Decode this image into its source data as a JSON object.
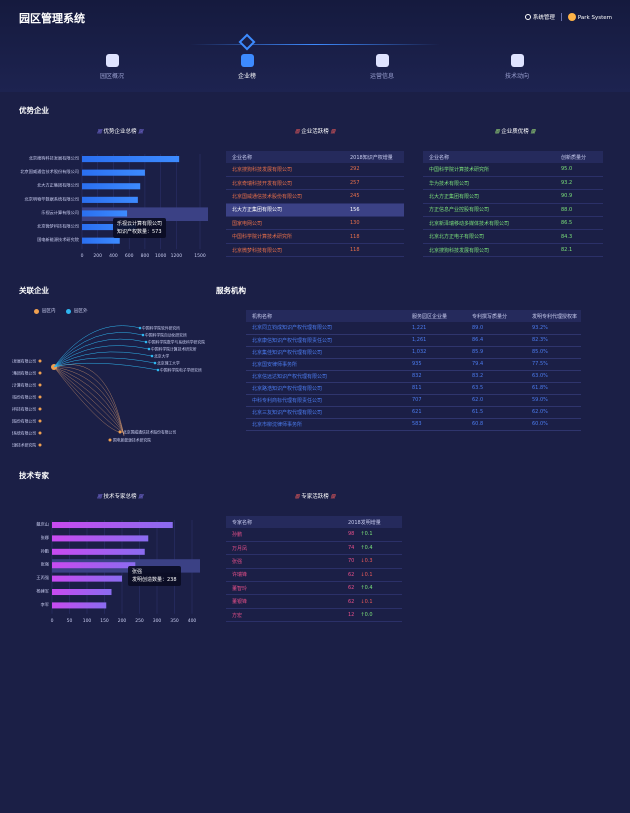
{
  "header": {
    "title": "园区管理系统",
    "settings_label": "系统管理",
    "user_label": "Park System"
  },
  "nav": [
    {
      "label": "园区概况"
    },
    {
      "label": "企业榜"
    },
    {
      "label": "运营信息"
    },
    {
      "label": "技术动向"
    }
  ],
  "sections": {
    "superior": "优势企业",
    "related": "关联企业",
    "service": "服务机构",
    "experts": "技术专家"
  },
  "superior_chart": {
    "title": "优势企业总榜",
    "chart_data": {
      "type": "bar",
      "categories": [
        "北京搜狗科技发展有限公司",
        "北京国威通信技术股份有限公司",
        "北大方正集团有限公司",
        "北京明物华数据系统有限公司",
        "乐视云计算有限公司",
        "北京微梦科技有限公司",
        "国电新能源技术研究院"
      ],
      "values": [
        1235,
        800,
        740,
        710,
        573,
        690,
        480
      ],
      "xlim": [
        0,
        1500
      ],
      "ticks": [
        0,
        200,
        400,
        600,
        800,
        1000,
        1200,
        1500
      ],
      "highlight": 4
    },
    "tooltip": {
      "name": "乐视云计算有限公司",
      "label": "知识产权数量：573"
    }
  },
  "active_table": {
    "title": "企业活跃榜",
    "headers": [
      "企业名称",
      "2018知识产权增量"
    ],
    "rows": [
      [
        "北京搜狗科技发展有限公司",
        "292"
      ],
      [
        "北京奇瑞科技开发有限公司",
        "257"
      ],
      [
        "北京国威通信技术股份有限公司",
        "245"
      ],
      [
        "北大方正集团有限公司",
        "156"
      ],
      [
        "国家电网公司",
        "130"
      ],
      [
        "中国科学院计算技术研究所",
        "118"
      ],
      [
        "北京微梦科技有限公司",
        "118"
      ]
    ]
  },
  "quality_table": {
    "title": "企业质优榜",
    "headers": [
      "企业名称",
      "创新质量分"
    ],
    "rows": [
      [
        "中国科学院计算技术研究所",
        "95.0"
      ],
      [
        "华为技术有限公司",
        "93.2"
      ],
      [
        "北大方正集团有限公司",
        "90.9"
      ],
      [
        "方正信息产业控股有限公司",
        "88.0"
      ],
      [
        "北京新泽瑞移动多媒体技术有限公司",
        "86.5"
      ],
      [
        "北京北方正电子有限公司",
        "84.3"
      ],
      [
        "北京搜狗科技发展有限公司",
        "82.1"
      ]
    ]
  },
  "related": {
    "legend": [
      "园区内",
      "园区外"
    ],
    "left": [
      "北京搜狗科技发展有限公司",
      "北大方正集团有限公司",
      "乐视云计算有限公司",
      "北京国威通信技术股份有限公司",
      "北京国科科技有限公司",
      "东软集团股份有限公司",
      "北京明物华数据系统有限公司",
      "国电新能源技术研究院"
    ],
    "right_top": [
      "中国科学院软件研究所",
      "中国科学院自动化研究所",
      "中国科学院数学与系统科学研究院",
      "中国科学院计算技术研究所",
      "北京大学",
      "北京理工大学",
      "中国科学院电子学研究所"
    ],
    "right_bottom": [
      "北京国威通信技术股份有限公司",
      "国电新能源技术研究院"
    ]
  },
  "service_table": {
    "headers": [
      "机构名称",
      "服务园区企业量",
      "专利撰写质量分",
      "发明专利代理授权率"
    ],
    "rows": [
      [
        "北京同立钧成知识产权代理有限公司",
        "1,221",
        "89.0",
        "93.2%"
      ],
      [
        "北京康信知识产权代理有限责任公司",
        "1,261",
        "86.4",
        "82.3%"
      ],
      [
        "北京集佳知识产权代理有限公司",
        "1,032",
        "85.9",
        "85.0%"
      ],
      [
        "北京国安律师事务所",
        "935",
        "79.4",
        "77.5%"
      ],
      [
        "北京信远达知识产权代理有限公司",
        "832",
        "83.2",
        "63.0%"
      ],
      [
        "北京路浩知识产权代理有限公司",
        "811",
        "63.5",
        "61.8%"
      ],
      [
        "中科专利商标代理有限责任公司",
        "707",
        "62.0",
        "59.0%"
      ],
      [
        "北京三友知识产权代理有限公司",
        "621",
        "61.5",
        "62.0%"
      ],
      [
        "北京市柳沈律师事务所",
        "583",
        "60.8",
        "60.0%"
      ]
    ]
  },
  "expert_chart": {
    "title": "技术专家总榜",
    "chart_data": {
      "type": "bar",
      "categories": [
        "戴庆山",
        "张娜",
        "孙鹏",
        "张强",
        "王丙强",
        "杨建军",
        "李军"
      ],
      "values": [
        345,
        275,
        265,
        238,
        200,
        170,
        155
      ],
      "xlim": [
        0,
        400
      ],
      "ticks": [
        0,
        50,
        100,
        150,
        200,
        250,
        300,
        350,
        400
      ],
      "highlight": 3
    },
    "tooltip": {
      "name": "张强",
      "label": "发明创造数量：238"
    }
  },
  "expert_active": {
    "title": "专家活跃榜",
    "headers": [
      "专家名称",
      "2018发明增量"
    ],
    "rows": [
      [
        "孙鹏",
        "98",
        "0.1",
        "up"
      ],
      [
        "万月凤",
        "74",
        "0.4",
        "up"
      ],
      [
        "张强",
        "70",
        "0.3",
        "down"
      ],
      [
        "许瑞锋",
        "62",
        "0.1",
        "down"
      ],
      [
        "董智玲",
        "62",
        "0.4",
        "up"
      ],
      [
        "董银锋",
        "62",
        "0.1",
        "down"
      ],
      [
        "方宏",
        "12",
        "0.0",
        "up"
      ]
    ]
  }
}
